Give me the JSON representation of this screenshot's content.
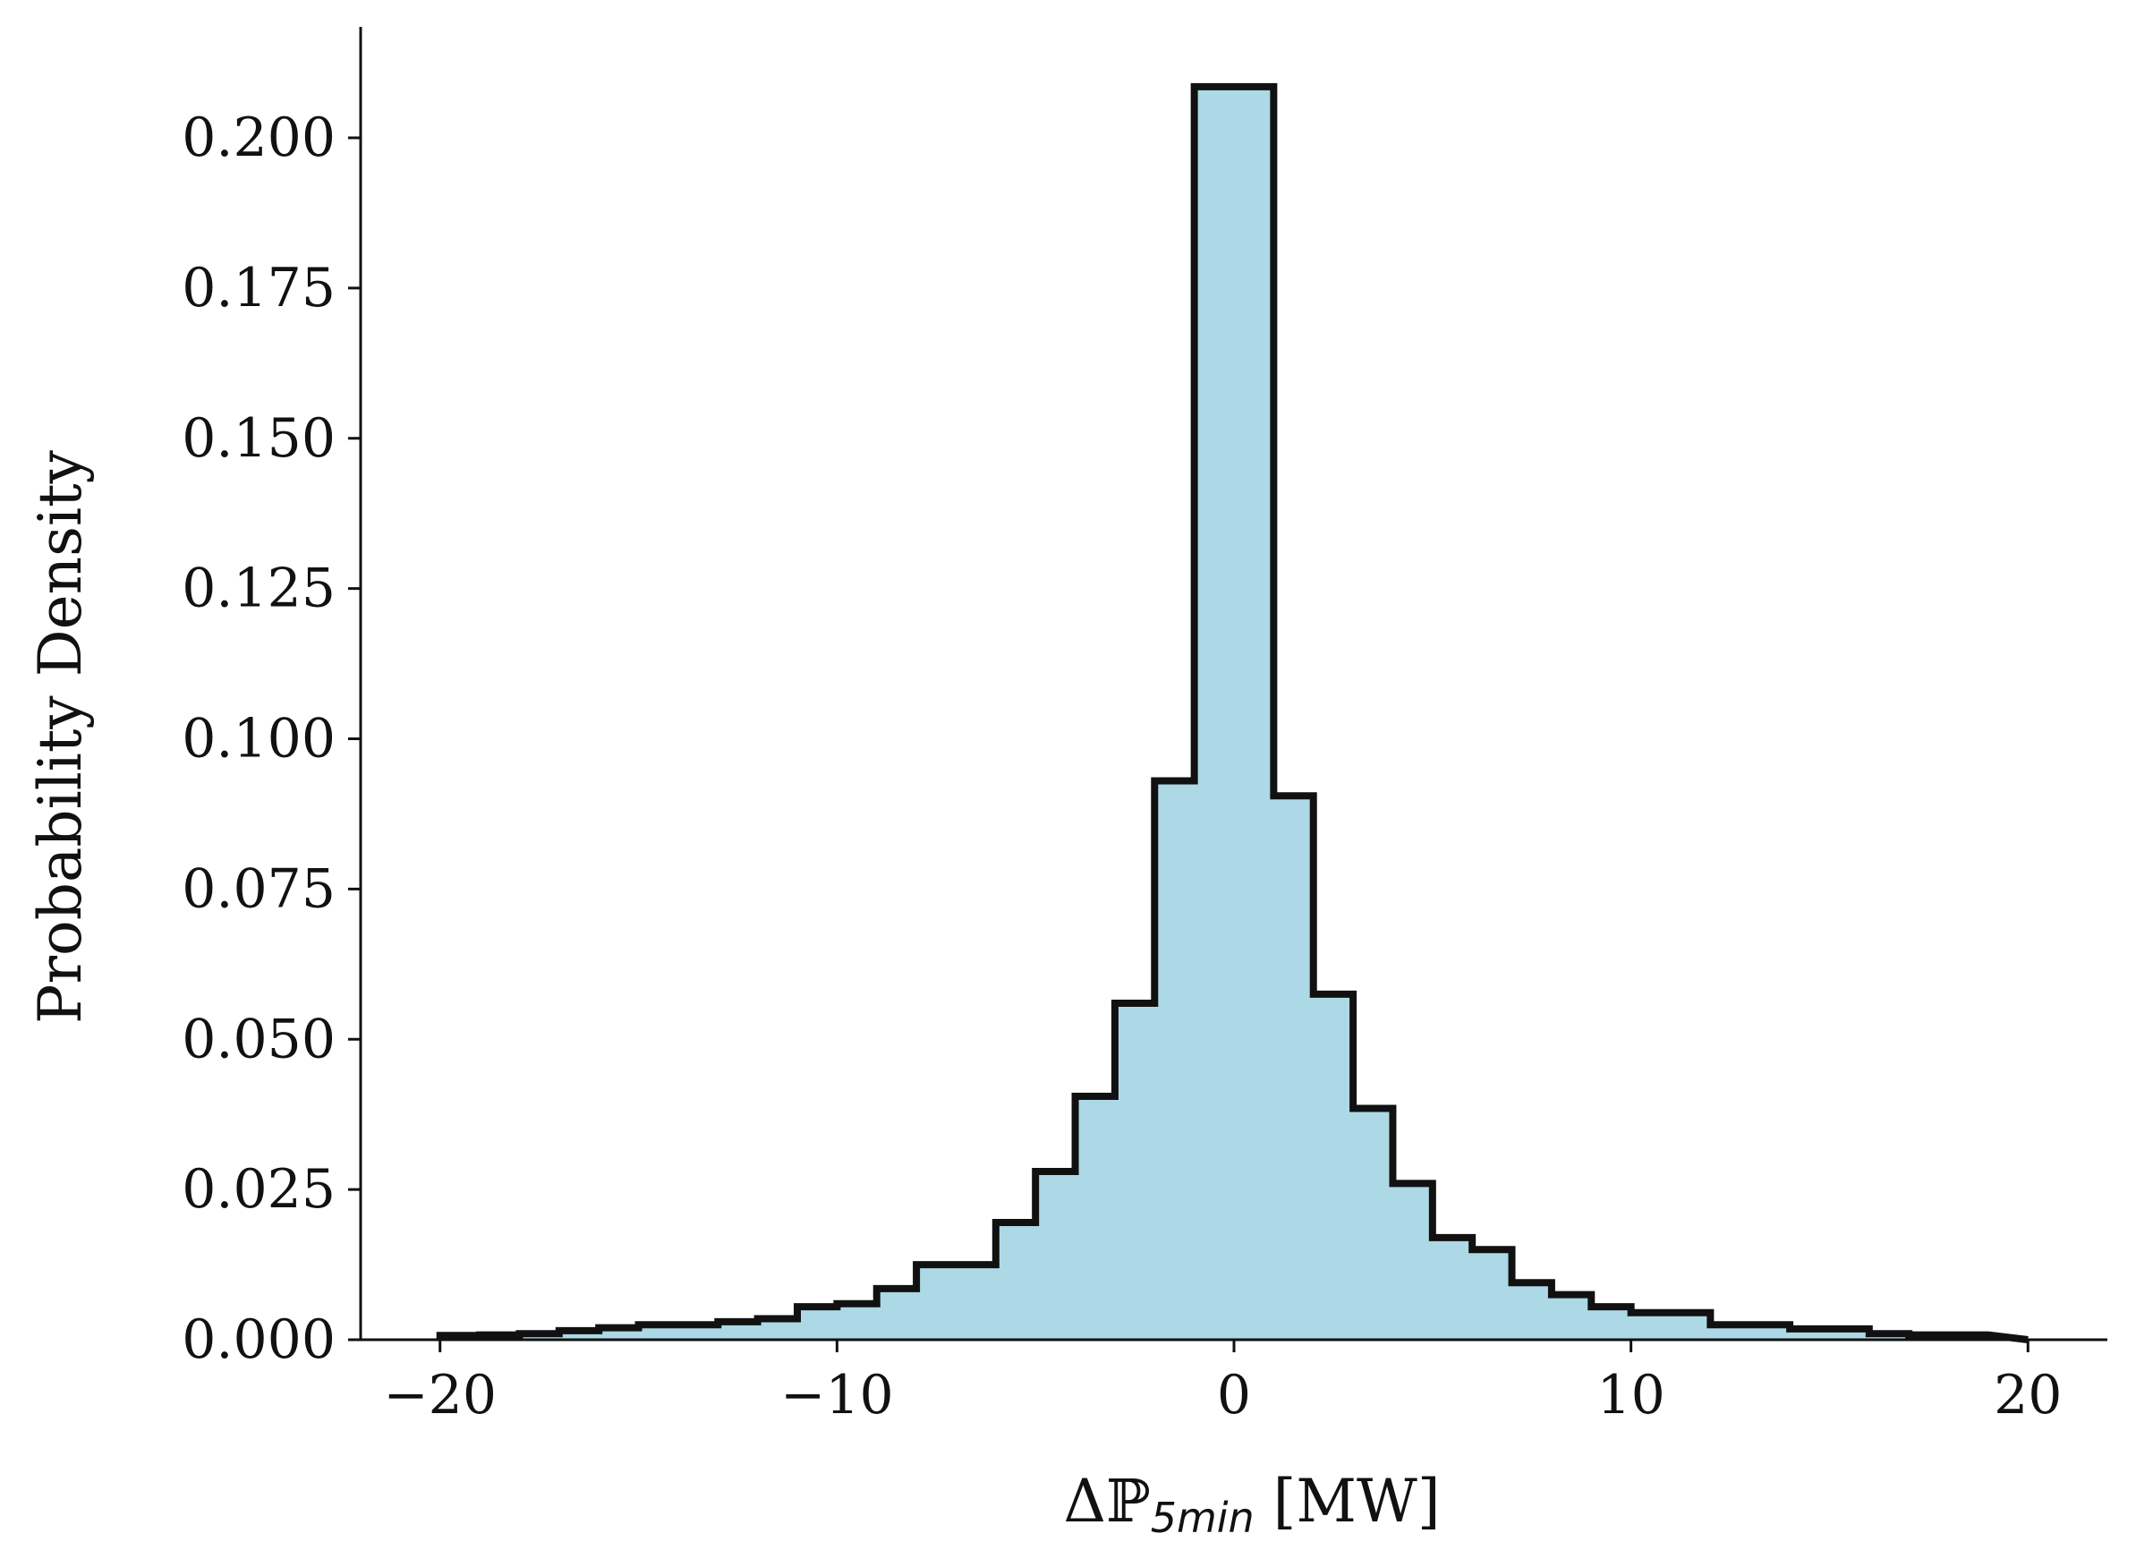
{
  "chart_data": {
    "type": "histogram",
    "xlabel": "ΔP5min [MW]",
    "xlabel_parts": {
      "prefix": "Δ",
      "symbol": "ℙ",
      "subscript": "5min",
      "unit": " [MW]"
    },
    "ylabel": "Probability Density",
    "xlim": [
      -22,
      22
    ],
    "ylim": [
      0,
      0.22
    ],
    "x_ticks": [
      -20,
      -10,
      0,
      10,
      20
    ],
    "x_tick_labels": [
      "−20",
      "−10",
      "0",
      "10",
      "20"
    ],
    "y_ticks": [
      0,
      0.025,
      0.05,
      0.075,
      0.1,
      0.125,
      0.15,
      0.175,
      0.2
    ],
    "y_tick_labels": [
      "0.000",
      "0.025",
      "0.050",
      "0.075",
      "0.100",
      "0.125",
      "0.150",
      "0.175",
      "0.200"
    ],
    "fill_color": "#add8e6",
    "edge_color": "#111111",
    "bin_edges": [
      -20,
      -19,
      -18,
      -17,
      -16,
      -15,
      -14,
      -13,
      -12,
      -11,
      -10,
      -9,
      -8,
      -7,
      -6,
      -5,
      -4,
      -3,
      -2,
      -1,
      0,
      1,
      2,
      3,
      4,
      5,
      6,
      7,
      8,
      9,
      10,
      11,
      12,
      13,
      14,
      15,
      16,
      17,
      18,
      19
    ],
    "values": [
      0.0007,
      0.0008,
      0.001,
      0.0015,
      0.002,
      0.0025,
      0.0025,
      0.003,
      0.0035,
      0.0055,
      0.006,
      0.0085,
      0.0125,
      0.0125,
      0.0195,
      0.028,
      0.0405,
      0.056,
      0.093,
      0.2085,
      0.2085,
      0.0905,
      0.0575,
      0.0385,
      0.026,
      0.017,
      0.015,
      0.0095,
      0.0075,
      0.0055,
      0.0045,
      0.0045,
      0.0025,
      0.0025,
      0.0018,
      0.0018,
      0.001,
      0.0008,
      0.0008
    ],
    "grid": false,
    "spines": [
      "left",
      "bottom"
    ]
  }
}
